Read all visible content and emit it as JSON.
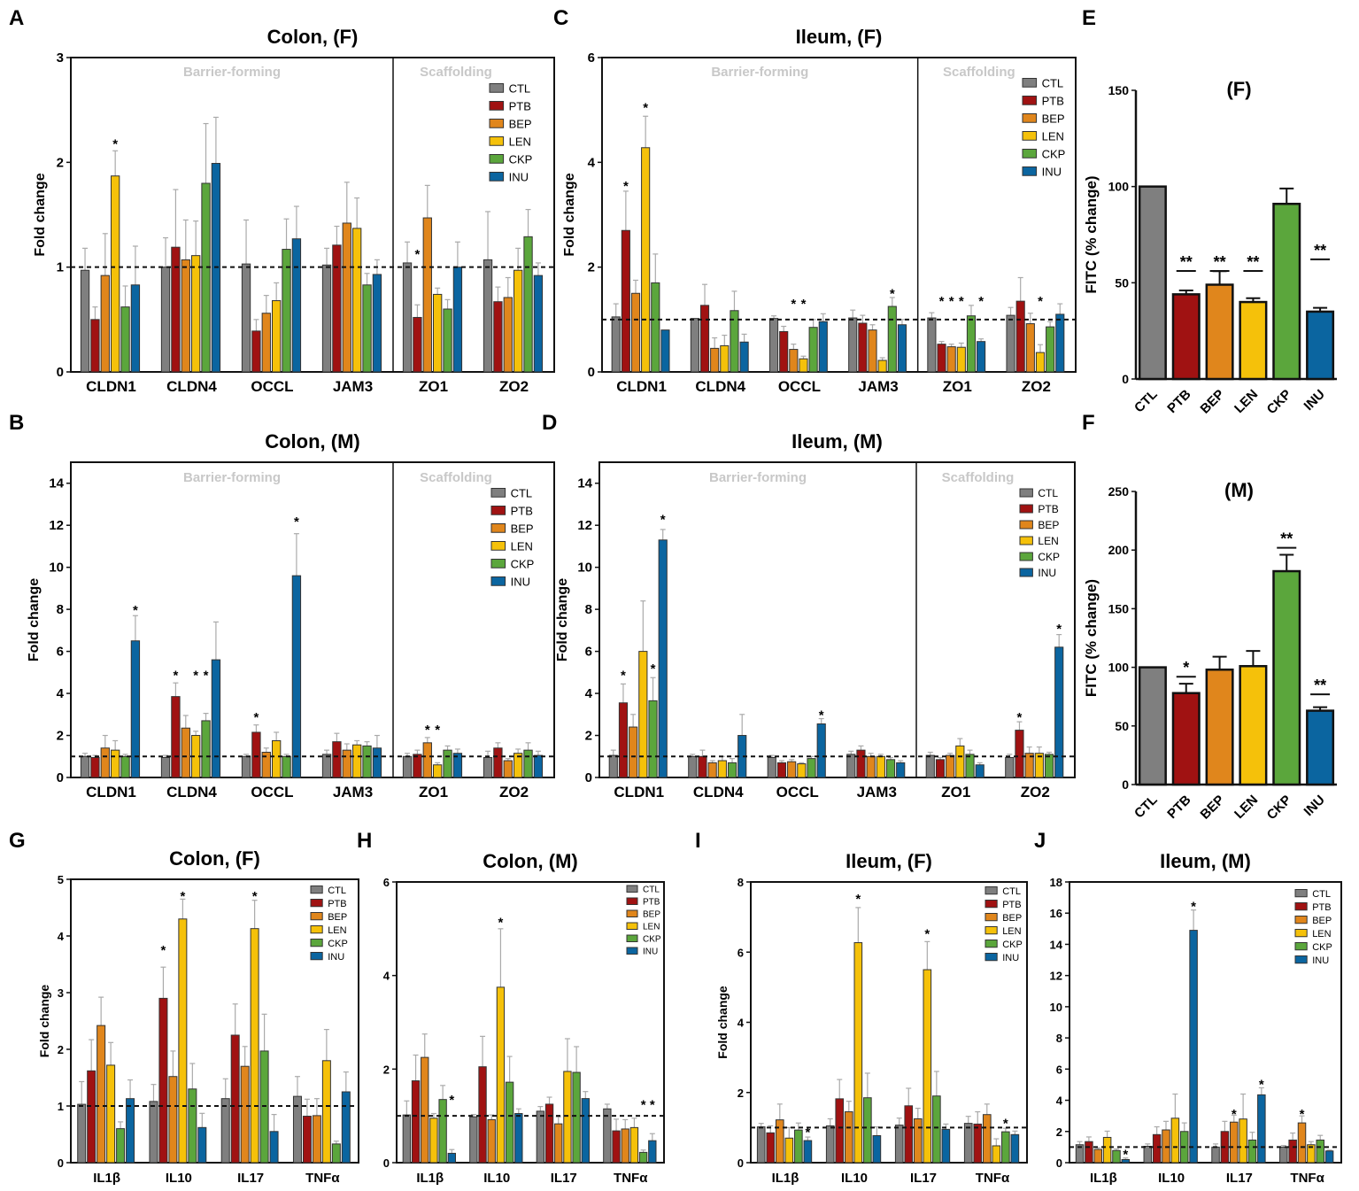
{
  "series_names": [
    "CTL",
    "PTB",
    "BEP",
    "LEN",
    "CKP",
    "INU"
  ],
  "colors": {
    "CTL": "#7f7f7f",
    "PTB": "#a01212",
    "BEP": "#e0861c",
    "LEN": "#f5c10a",
    "CKP": "#5ba63c",
    "INU": "#0b65a0"
  },
  "sections": [
    "Barrier-forming",
    "Scaffolding"
  ],
  "chart_data": [
    {
      "id": "A",
      "letter": "A",
      "type": "bar",
      "title": "Colon, (F)",
      "ylabel": "Fold change",
      "ylim": [
        0,
        3
      ],
      "ytick_step": 1,
      "ref": 1,
      "categories": [
        "CLDN1",
        "CLDN4",
        "OCCL",
        "JAM3",
        "ZO1",
        "ZO2"
      ],
      "values": [
        [
          0.97,
          0.5,
          0.92,
          1.87,
          0.62,
          0.83
        ],
        [
          1.0,
          1.19,
          1.07,
          1.11,
          1.8,
          1.99
        ],
        [
          1.03,
          0.39,
          0.56,
          0.68,
          1.17,
          1.27
        ],
        [
          1.02,
          1.21,
          1.42,
          1.37,
          0.83,
          0.93
        ],
        [
          1.04,
          0.52,
          1.47,
          0.74,
          0.6,
          1.0
        ],
        [
          1.07,
          0.67,
          0.71,
          0.97,
          1.29,
          0.92
        ]
      ],
      "errors": [
        [
          0.21,
          0.12,
          0.4,
          0.24,
          0.2,
          0.37
        ],
        [
          0.28,
          0.55,
          0.38,
          0.33,
          0.57,
          0.44
        ],
        [
          0.42,
          0.11,
          0.17,
          0.17,
          0.29,
          0.31
        ],
        [
          0.16,
          0.18,
          0.39,
          0.29,
          0.11,
          0.14
        ],
        [
          0.2,
          0.12,
          0.31,
          0.06,
          0.09,
          0.24
        ],
        [
          0.46,
          0.14,
          0.19,
          0.21,
          0.26,
          0.12
        ]
      ],
      "sig": [
        [
          0,
          3,
          "*",
          2.2
        ],
        [
          4,
          1,
          "*",
          1.15
        ]
      ]
    },
    {
      "id": "C",
      "letter": "C",
      "type": "bar",
      "title": "Ileum, (F)",
      "ylabel": "Fold change",
      "ylim": [
        0,
        6
      ],
      "ytick_step": 2,
      "ref": 1,
      "categories": [
        "CLDN1",
        "CLDN4",
        "OCCL",
        "JAM3",
        "ZO1",
        "ZO2"
      ],
      "values": [
        [
          1.05,
          2.7,
          1.5,
          4.28,
          1.7,
          0.8
        ],
        [
          1.02,
          1.27,
          0.45,
          0.5,
          1.17,
          0.57
        ],
        [
          1.02,
          0.77,
          0.43,
          0.25,
          0.85,
          0.96
        ],
        [
          1.03,
          0.93,
          0.8,
          0.22,
          1.25,
          0.9
        ],
        [
          1.03,
          0.53,
          0.48,
          0.47,
          1.07,
          0.58
        ],
        [
          1.08,
          1.35,
          0.92,
          0.37,
          0.86,
          1.1
        ]
      ],
      "errors": [
        [
          0.25,
          0.75,
          0.25,
          0.6,
          0.55,
          0.0
        ],
        [
          0.0,
          0.4,
          0.2,
          0.2,
          0.37,
          0.15
        ],
        [
          0.05,
          0.1,
          0.1,
          0.05,
          0.15,
          0.15
        ],
        [
          0.15,
          0.15,
          0.1,
          0.05,
          0.17,
          0.1
        ],
        [
          0.1,
          0.05,
          0.05,
          0.08,
          0.2,
          0.05
        ],
        [
          0.15,
          0.45,
          0.2,
          0.15,
          0.1,
          0.2
        ]
      ],
      "sig": [
        [
          0,
          1,
          "*",
          3.6
        ],
        [
          0,
          3,
          "*",
          5.1
        ],
        [
          2,
          2,
          "*",
          1.35
        ],
        [
          2,
          3,
          "*",
          1.35
        ],
        [
          3,
          4,
          "*",
          1.55
        ],
        [
          4,
          1,
          "*",
          1.4
        ],
        [
          4,
          2,
          "*",
          1.4
        ],
        [
          4,
          3,
          "*",
          1.4
        ],
        [
          4,
          5,
          "*",
          1.4
        ],
        [
          5,
          3,
          "*",
          1.4
        ]
      ]
    },
    {
      "id": "B",
      "letter": "B",
      "type": "bar",
      "title": "Colon, (M)",
      "ylabel": "Fold change",
      "ylim": [
        0,
        15
      ],
      "ytick_step": 2,
      "ref": 1,
      "categories": [
        "CLDN1",
        "CLDN4",
        "OCCL",
        "JAM3",
        "ZO1",
        "ZO2"
      ],
      "values": [
        [
          1.0,
          0.95,
          1.4,
          1.3,
          1.0,
          6.5
        ],
        [
          0.95,
          3.85,
          2.35,
          2.0,
          2.7,
          5.6
        ],
        [
          1.0,
          2.15,
          1.2,
          1.75,
          1.0,
          9.6
        ],
        [
          1.1,
          1.7,
          1.3,
          1.55,
          1.5,
          1.4
        ],
        [
          1.0,
          1.1,
          1.65,
          0.6,
          1.3,
          1.15
        ],
        [
          0.95,
          1.4,
          0.8,
          1.15,
          1.3,
          1.05
        ]
      ],
      "errors": [
        [
          0.15,
          0.1,
          0.6,
          0.45,
          0.1,
          1.2
        ],
        [
          0.1,
          0.65,
          0.6,
          0.2,
          0.35,
          1.8
        ],
        [
          0.1,
          0.35,
          0.2,
          0.4,
          0.1,
          2.0
        ],
        [
          0.2,
          0.4,
          0.3,
          0.2,
          0.2,
          0.6
        ],
        [
          0.15,
          0.2,
          0.25,
          0.1,
          0.2,
          0.2
        ],
        [
          0.3,
          0.25,
          0.1,
          0.2,
          0.35,
          0.2
        ]
      ],
      "sig": [
        [
          0,
          5,
          "*",
          8.1
        ],
        [
          1,
          1,
          "*",
          5.0
        ],
        [
          1,
          3,
          "*",
          5.0
        ],
        [
          1,
          4,
          "*",
          5.0
        ],
        [
          2,
          1,
          "*",
          3.0
        ],
        [
          2,
          5,
          "*",
          12.3
        ],
        [
          4,
          2,
          "*",
          2.4
        ],
        [
          4,
          3,
          "*",
          2.4
        ]
      ]
    },
    {
      "id": "D",
      "letter": "D",
      "type": "bar",
      "title": "Ileum, (M)",
      "ylabel": "Fold change",
      "ylim": [
        0,
        15
      ],
      "ytick_step": 2,
      "ref": 1,
      "categories": [
        "CLDN1",
        "CLDN4",
        "OCCL",
        "JAM3",
        "ZO1",
        "ZO2"
      ],
      "values": [
        [
          1.05,
          3.55,
          2.4,
          6.0,
          3.65,
          11.3
        ],
        [
          1.0,
          1.0,
          0.7,
          0.8,
          0.7,
          2.0
        ],
        [
          0.95,
          0.7,
          0.75,
          0.65,
          0.9,
          2.55
        ],
        [
          1.1,
          1.3,
          1.0,
          1.0,
          0.85,
          0.7
        ],
        [
          1.05,
          0.85,
          1.05,
          1.5,
          1.1,
          0.6
        ],
        [
          0.95,
          2.25,
          1.15,
          1.15,
          1.1,
          6.2
        ]
      ],
      "errors": [
        [
          0.25,
          0.9,
          0.6,
          2.4,
          1.1,
          0.5
        ],
        [
          0.1,
          0.3,
          0.1,
          0.2,
          0.2,
          1.0
        ],
        [
          0.1,
          0.1,
          0.1,
          0.05,
          0.1,
          0.25
        ],
        [
          0.15,
          0.2,
          0.15,
          0.1,
          0.1,
          0.1
        ],
        [
          0.15,
          0.1,
          0.1,
          0.35,
          0.2,
          0.1
        ],
        [
          0.15,
          0.4,
          0.3,
          0.3,
          0.1,
          0.6
        ]
      ],
      "sig": [
        [
          0,
          1,
          "*",
          5.0
        ],
        [
          0,
          4,
          "*",
          5.3
        ],
        [
          0,
          5,
          "*",
          12.4
        ],
        [
          2,
          5,
          "*",
          3.1
        ],
        [
          5,
          1,
          "*",
          3.0
        ],
        [
          5,
          5,
          "*",
          7.2
        ]
      ]
    },
    {
      "id": "E",
      "letter": "E",
      "type": "bar",
      "title": "(F)",
      "ylabel": "FITC (% change)",
      "ylim": [
        0,
        150
      ],
      "ytick_step": 50,
      "categories": [
        "CTL",
        "PTB",
        "BEP",
        "LEN",
        "CKP",
        "INU"
      ],
      "values": [
        100,
        44,
        49,
        40,
        91,
        35
      ],
      "errors": [
        0,
        2,
        7,
        2,
        8,
        2
      ],
      "sig": [
        [
          1,
          "**",
          58
        ],
        [
          2,
          "**",
          58
        ],
        [
          3,
          "**",
          58
        ],
        [
          5,
          "**",
          64
        ]
      ]
    },
    {
      "id": "F",
      "letter": "F",
      "type": "bar",
      "title": "(M)",
      "ylabel": "FITC (% change)",
      "ylim": [
        0,
        250
      ],
      "ytick_step": 50,
      "categories": [
        "CTL",
        "PTB",
        "BEP",
        "LEN",
        "CKP",
        "INU"
      ],
      "values": [
        100,
        78,
        98,
        101,
        182,
        63
      ],
      "errors": [
        0,
        8,
        11,
        13,
        14,
        3
      ],
      "sig": [
        [
          1,
          "*",
          95
        ],
        [
          4,
          "**",
          205
        ],
        [
          5,
          "**",
          80
        ]
      ]
    },
    {
      "id": "G",
      "letter": "G",
      "type": "bar",
      "title": "Colon, (F)",
      "ylabel": "Fold change",
      "ylim": [
        0,
        5
      ],
      "ytick_step": 1,
      "ref": 1,
      "categories": [
        "IL1β",
        "IL10",
        "IL17",
        "TNFα"
      ],
      "values": [
        [
          1.03,
          1.62,
          2.42,
          1.72,
          0.6,
          1.13
        ],
        [
          1.08,
          2.9,
          1.52,
          4.3,
          1.3,
          0.62
        ],
        [
          1.13,
          2.25,
          1.7,
          4.13,
          1.97,
          0.55
        ],
        [
          1.17,
          0.82,
          0.83,
          1.8,
          0.33,
          1.25
        ]
      ],
      "errors": [
        [
          0.4,
          0.55,
          0.5,
          0.4,
          0.12,
          0.33
        ],
        [
          0.3,
          0.55,
          0.45,
          0.35,
          0.45,
          0.25
        ],
        [
          0.35,
          0.55,
          0.35,
          0.5,
          0.65,
          0.3
        ],
        [
          0.35,
          0.3,
          0.3,
          0.55,
          0.05,
          0.35
        ]
      ],
      "sig": [
        [
          1,
          1,
          "*",
          3.8
        ],
        [
          1,
          3,
          "*",
          4.75
        ],
        [
          2,
          3,
          "*",
          4.75
        ]
      ]
    },
    {
      "id": "H",
      "letter": "H",
      "type": "bar",
      "title": "Colon, (M)",
      "ylabel": "",
      "ylim": [
        0,
        6
      ],
      "ytick_step": 2,
      "ref": 1,
      "categories": [
        "IL1β",
        "IL10",
        "IL17",
        "TNFα"
      ],
      "values": [
        [
          1.02,
          1.75,
          2.25,
          0.95,
          1.35,
          0.2
        ],
        [
          0.98,
          2.05,
          0.92,
          3.75,
          1.72,
          1.05
        ],
        [
          1.1,
          1.25,
          0.83,
          1.95,
          1.93,
          1.37
        ],
        [
          1.15,
          0.68,
          0.72,
          0.75,
          0.22,
          0.47
        ]
      ],
      "errors": [
        [
          0.3,
          0.55,
          0.5,
          0.1,
          0.3,
          0.08
        ],
        [
          0.05,
          0.65,
          0.1,
          1.25,
          0.55,
          0.1
        ],
        [
          0.1,
          0.15,
          0.15,
          0.7,
          0.55,
          0.15
        ],
        [
          0.1,
          0.25,
          0.2,
          0.2,
          0.05,
          0.15
        ]
      ],
      "sig": [
        [
          0,
          5,
          "*",
          1.4
        ],
        [
          1,
          3,
          "*",
          5.2
        ],
        [
          3,
          4,
          "*",
          1.3
        ],
        [
          3,
          5,
          "*",
          1.3
        ]
      ]
    },
    {
      "id": "I",
      "letter": "I",
      "type": "bar",
      "title": "Ileum, (F)",
      "ylabel": "Fold change",
      "ylim": [
        0,
        8
      ],
      "ytick_step": 2,
      "ref": 1,
      "categories": [
        "IL1β",
        "IL10",
        "IL17",
        "TNFα"
      ],
      "values": [
        [
          1.02,
          0.85,
          1.22,
          0.7,
          0.93,
          0.63
        ],
        [
          1.05,
          1.82,
          1.45,
          6.27,
          1.85,
          0.77
        ],
        [
          1.07,
          1.62,
          1.25,
          5.5,
          1.9,
          0.95
        ],
        [
          1.12,
          1.1,
          1.37,
          0.48,
          0.88,
          0.8
        ]
      ],
      "errors": [
        [
          0.1,
          0.2,
          0.45,
          0.3,
          0.2,
          0.1
        ],
        [
          0.2,
          0.55,
          0.3,
          1.0,
          0.7,
          0.25
        ],
        [
          0.2,
          0.5,
          0.3,
          0.8,
          0.7,
          0.15
        ],
        [
          0.2,
          0.35,
          0.3,
          0.2,
          0.1,
          0.1
        ]
      ],
      "sig": [
        [
          0,
          5,
          "*",
          0.95
        ],
        [
          1,
          3,
          "*",
          7.6
        ],
        [
          2,
          3,
          "*",
          6.6
        ],
        [
          3,
          4,
          "*",
          1.2
        ]
      ]
    },
    {
      "id": "J",
      "letter": "J",
      "type": "bar",
      "title": "Ileum, (M)",
      "ylabel": "",
      "ylim": [
        0,
        18
      ],
      "ytick_step": 2,
      "ref": 1,
      "categories": [
        "IL1β",
        "IL10",
        "IL17",
        "TNFα"
      ],
      "values": [
        [
          1.15,
          1.35,
          0.85,
          1.62,
          0.78,
          0.2
        ],
        [
          1.05,
          1.8,
          2.1,
          2.85,
          2.0,
          14.9
        ],
        [
          1.0,
          2.0,
          2.6,
          2.8,
          1.45,
          4.35
        ],
        [
          1.0,
          1.45,
          2.55,
          1.15,
          1.45,
          0.75
        ]
      ],
      "errors": [
        [
          0.2,
          0.3,
          0.1,
          0.4,
          0.1,
          0.1
        ],
        [
          0.15,
          0.5,
          0.55,
          1.55,
          0.55,
          1.3
        ],
        [
          0.2,
          0.65,
          0.45,
          1.6,
          0.5,
          0.45
        ],
        [
          0.1,
          0.45,
          0.45,
          0.2,
          0.3,
          0.05
        ]
      ],
      "sig": [
        [
          0,
          5,
          "*",
          0.7
        ],
        [
          1,
          5,
          "*",
          16.6
        ],
        [
          2,
          2,
          "*",
          3.3
        ],
        [
          2,
          5,
          "*",
          5.2
        ],
        [
          3,
          2,
          "*",
          3.3
        ]
      ]
    }
  ]
}
